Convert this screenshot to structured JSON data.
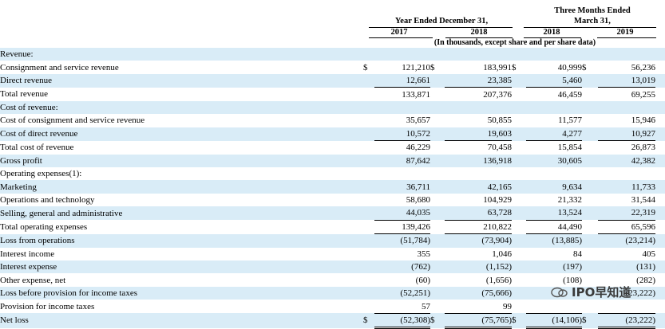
{
  "headers": {
    "year_ended": "Year Ended December 31,",
    "three_months_line1": "Three Months Ended",
    "three_months_line2": "March 31,",
    "years": [
      "2017",
      "2018",
      "2018",
      "2019"
    ],
    "units_note": "(In thousands, except share and per share data)"
  },
  "rows": [
    {
      "label": "Revenue:",
      "level": 0,
      "shade": true,
      "values": [
        "",
        "",
        "",
        ""
      ],
      "dollar": false
    },
    {
      "label": "Consignment and service revenue",
      "level": 1,
      "shade": false,
      "values": [
        "121,210",
        "183,991",
        "40,999",
        "56,236"
      ],
      "dollar": true
    },
    {
      "label": "Direct revenue",
      "level": 1,
      "shade": true,
      "values": [
        "12,661",
        "23,385",
        "5,460",
        "13,019"
      ],
      "dollar": false
    },
    {
      "label": "Total revenue",
      "level": 2,
      "shade": false,
      "values": [
        "133,871",
        "207,376",
        "46,459",
        "69,255"
      ],
      "dollar": false
    },
    {
      "label": "Cost of revenue:",
      "level": 0,
      "shade": true,
      "values": [
        "",
        "",
        "",
        ""
      ],
      "dollar": false
    },
    {
      "label": "Cost of consignment and service revenue",
      "level": 1,
      "shade": false,
      "values": [
        "35,657",
        "50,855",
        "11,577",
        "15,946"
      ],
      "dollar": false
    },
    {
      "label": "Cost of direct revenue",
      "level": 1,
      "shade": true,
      "values": [
        "10,572",
        "19,603",
        "4,277",
        "10,927"
      ],
      "dollar": false
    },
    {
      "label": "Total cost of revenue",
      "level": 2,
      "shade": false,
      "values": [
        "46,229",
        "70,458",
        "15,854",
        "26,873"
      ],
      "dollar": false
    },
    {
      "label": "Gross profit",
      "level": 0,
      "shade": true,
      "values": [
        "87,642",
        "136,918",
        "30,605",
        "42,382"
      ],
      "dollar": false
    },
    {
      "label": "Operating expenses(1):",
      "level": 0,
      "shade": false,
      "values": [
        "",
        "",
        "",
        ""
      ],
      "dollar": false
    },
    {
      "label": "Marketing",
      "level": 1,
      "shade": true,
      "values": [
        "36,711",
        "42,165",
        "9,634",
        "11,733"
      ],
      "dollar": false
    },
    {
      "label": "Operations and technology",
      "level": 1,
      "shade": false,
      "values": [
        "58,680",
        "104,929",
        "21,332",
        "31,544"
      ],
      "dollar": false
    },
    {
      "label": "Selling, general and administrative",
      "level": 1,
      "shade": true,
      "values": [
        "44,035",
        "63,728",
        "13,524",
        "22,319"
      ],
      "dollar": false
    },
    {
      "label": "Total operating expenses",
      "level": 2,
      "shade": false,
      "values": [
        "139,426",
        "210,822",
        "44,490",
        "65,596"
      ],
      "dollar": false
    },
    {
      "label": "Loss from operations",
      "level": 0,
      "shade": true,
      "values": [
        "(51,784)",
        "(73,904)",
        "(13,885)",
        "(23,214)"
      ],
      "dollar": false
    },
    {
      "label": "Interest income",
      "level": 0,
      "shade": false,
      "values": [
        "355",
        "1,046",
        "84",
        "405"
      ],
      "dollar": false
    },
    {
      "label": "Interest expense",
      "level": 0,
      "shade": true,
      "values": [
        "(762)",
        "(1,152)",
        "(197)",
        "(131)"
      ],
      "dollar": false
    },
    {
      "label": "Other expense, net",
      "level": 0,
      "shade": false,
      "values": [
        "(60)",
        "(1,656)",
        "(108)",
        "(282)"
      ],
      "dollar": false
    },
    {
      "label": "Loss before provision for income taxes",
      "level": 0,
      "shade": true,
      "values": [
        "(52,251)",
        "(75,666)",
        "",
        "(23,222)"
      ],
      "dollar": false
    },
    {
      "label": "Provision for income taxes",
      "level": 0,
      "shade": false,
      "values": [
        "57",
        "99",
        "",
        ""
      ],
      "dollar": false
    },
    {
      "label": "Net loss",
      "level": 0,
      "shade": true,
      "values": [
        "(52,308)",
        "(75,765)",
        "(14,106)",
        "(23,222)"
      ],
      "dollar": true
    }
  ],
  "dollar_sign": "$",
  "watermark": {
    "text": "IPO早知道"
  }
}
